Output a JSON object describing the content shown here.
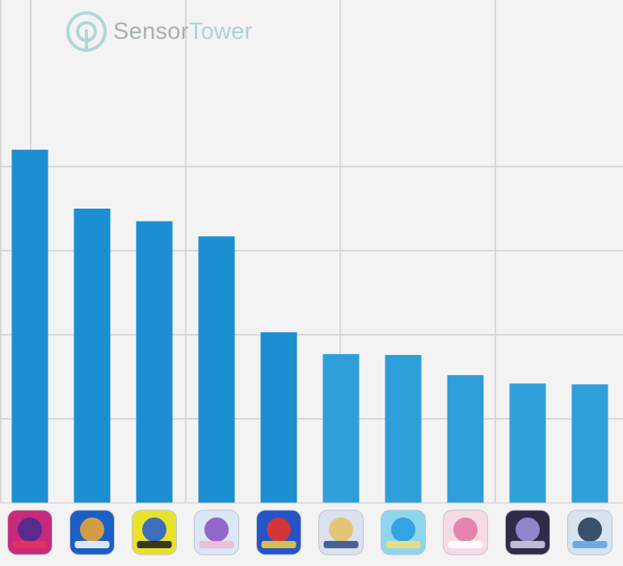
{
  "brand": {
    "name_part1": "Sensor",
    "name_part2": "Tower",
    "primary_color": "#a9d4d4",
    "secondary_color": "#a8b0b3"
  },
  "chart_data": {
    "type": "bar",
    "title": "",
    "xlabel": "",
    "ylabel": "",
    "ylim": [
      0,
      5.0
    ],
    "grid": true,
    "gridline_values": [
      1,
      2,
      3,
      4
    ],
    "category_icons": [
      "dragon-app-icon",
      "anime-fighter-app-icon",
      "4th-anniversary-app-icon",
      "horse-girl-app-icon",
      "10th-anniversary-app-icon",
      "fantasy-knight-app-icon",
      "hero-app-icon",
      "pink-hair-girl-app-icon",
      "dark-warrior-app-icon",
      "football-player-app-icon"
    ],
    "values": [
      4.2,
      3.5,
      3.35,
      3.17,
      2.03,
      1.77,
      1.76,
      1.52,
      1.42,
      1.41
    ],
    "bar_color": "#1b8fd2",
    "bar_color_end": "#2f9fda"
  }
}
